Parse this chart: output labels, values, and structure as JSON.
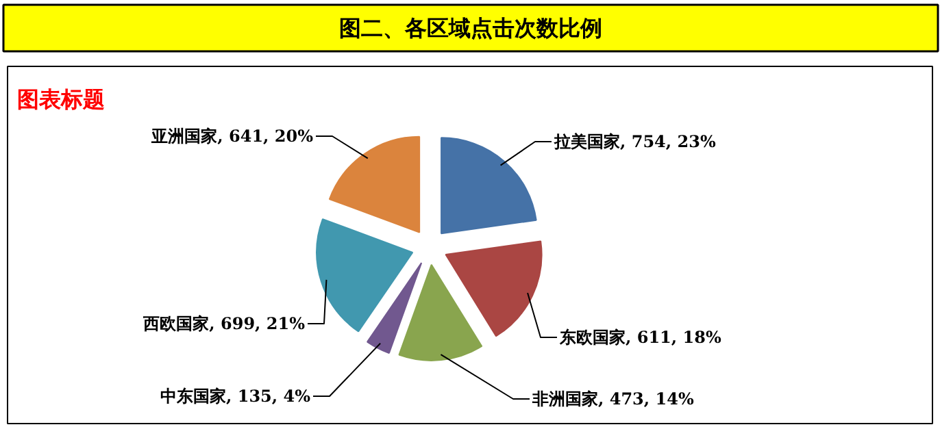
{
  "chart_data": {
    "type": "pie",
    "title": "图二、各区域点击次数比例",
    "subtitle": "图表标题",
    "categories": [
      "拉美国家",
      "东欧国家",
      "非洲国家",
      "中东国家",
      "西欧国家",
      "亚洲国家"
    ],
    "values": [
      754,
      611,
      473,
      135,
      699,
      641
    ],
    "colors": [
      "#4572a7",
      "#aa4643",
      "#89a54e",
      "#71588f",
      "#4198af",
      "#db843d"
    ],
    "value_labels": [
      "754, 23%",
      "611, 18%",
      "473, 14%",
      "135, 4%",
      "699, 21%",
      "641, 20%"
    ]
  }
}
